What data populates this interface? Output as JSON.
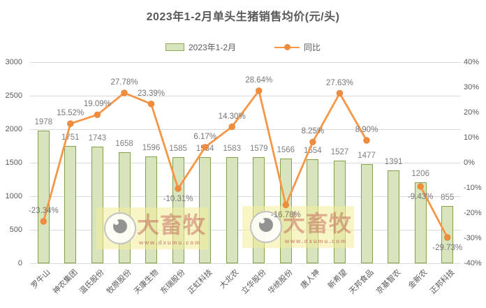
{
  "title": "2023年1-2月单头生猪销售均价(元/头)",
  "legend": {
    "bar_label": "2023年1-2月",
    "line_label": "同比"
  },
  "watermark": {
    "brand": "大畜牧",
    "url": "www.dxumu.com"
  },
  "colors": {
    "bar_fill": "#d8e4bd",
    "bar_border": "#85a04b",
    "line": "#f79646",
    "marker": "#f08c3c",
    "grid": "#d9d9d9",
    "axis_text": "#595959",
    "data_label": "#7f7f7f",
    "title_text": "#595959",
    "watermark_band": "#f2ec99",
    "watermark_text": "#ba4945"
  },
  "chart_data": {
    "type": "bar",
    "subtype": "bar+line combo, dual axis",
    "title": "2023年1-2月单头生猪销售均价(元/头)",
    "categories": [
      "罗牛山",
      "神农集团",
      "温氏股份",
      "牧原股份",
      "天康生物",
      "东瑞股份",
      "正虹科技",
      "大北农",
      "立华股份",
      "华统股份",
      "唐人神",
      "新希望",
      "天邦食品",
      "京基智农",
      "金新农",
      "正邦科技"
    ],
    "series": [
      {
        "name": "2023年1-2月",
        "type": "bar",
        "axis": "left",
        "values": [
          1978,
          1751,
          1743,
          1658,
          1596,
          1585,
          1584,
          1583,
          1579,
          1566,
          1554,
          1527,
          1477,
          1391,
          1206,
          855
        ]
      },
      {
        "name": "同比",
        "type": "line",
        "axis": "right",
        "unit": "%",
        "values": [
          -23.34,
          15.52,
          19.09,
          27.78,
          23.39,
          -10.31,
          6.17,
          14.3,
          28.64,
          -16.78,
          8.25,
          27.63,
          8.9,
          null,
          -9.43,
          -29.73
        ],
        "point_labels": [
          "-23.34%",
          "15.52%",
          "19.09%",
          "27.78%",
          "23.39%",
          "-10.31%",
          "6.17%",
          "14.30%",
          "28.64%",
          "-16.78%",
          "8.25%",
          "27.63%",
          "8.90%",
          null,
          "-9.43%",
          "-29.73%"
        ],
        "label_side": [
          "above",
          "above",
          "above",
          "above",
          "above",
          "below",
          "above",
          "above",
          "above",
          "below",
          "above",
          "above",
          "above",
          null,
          "below",
          "below"
        ]
      }
    ],
    "left_axis": {
      "min": 0,
      "max": 3000,
      "step": 500,
      "ticks": [
        "3000",
        "2500",
        "2000",
        "1500",
        "1000",
        "500",
        "0"
      ]
    },
    "right_axis": {
      "min": -40,
      "max": 40,
      "step": 10,
      "ticks": [
        "40%",
        "30%",
        "20%",
        "10%",
        "0%",
        "-10%",
        "-20%",
        "-30%",
        "-40%"
      ]
    },
    "grid": "horizontal",
    "legend_position": "top"
  }
}
